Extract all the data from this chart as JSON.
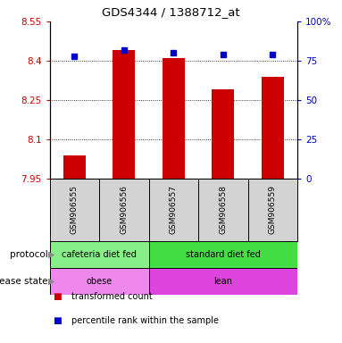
{
  "title": "GDS4344 / 1388712_at",
  "samples": [
    "GSM906555",
    "GSM906556",
    "GSM906557",
    "GSM906558",
    "GSM906559"
  ],
  "transformed_counts": [
    8.04,
    8.44,
    8.41,
    8.29,
    8.34
  ],
  "percentile_ranks": [
    78,
    82,
    80,
    79,
    79
  ],
  "ylim_left": [
    7.95,
    8.55
  ],
  "ylim_right": [
    0,
    100
  ],
  "yticks_left": [
    7.95,
    8.1,
    8.25,
    8.4,
    8.55
  ],
  "ytick_labels_left": [
    "7.95",
    "8.1",
    "8.25",
    "8.4",
    "8.55"
  ],
  "yticks_right": [
    0,
    25,
    50,
    75,
    100
  ],
  "ytick_labels_right": [
    "0",
    "25",
    "50",
    "75",
    "100%"
  ],
  "bar_color": "#cc0000",
  "dot_color": "#0000cc",
  "bar_width": 0.45,
  "protocol_groups": [
    {
      "label": "cafeteria diet fed",
      "samples": [
        "GSM906555",
        "GSM906556"
      ],
      "color": "#88ee88"
    },
    {
      "label": "standard diet fed",
      "samples": [
        "GSM906557",
        "GSM906558",
        "GSM906559"
      ],
      "color": "#44dd44"
    }
  ],
  "disease_groups": [
    {
      "label": "obese",
      "samples": [
        "GSM906555",
        "GSM906556"
      ],
      "color": "#ee88ee"
    },
    {
      "label": "lean",
      "samples": [
        "GSM906557",
        "GSM906558",
        "GSM906559"
      ],
      "color": "#dd44dd"
    }
  ],
  "left_axis_color": "#cc0000",
  "right_axis_color": "#0000cc",
  "legend_items": [
    {
      "label": "transformed count",
      "color": "#cc0000"
    },
    {
      "label": "percentile rank within the sample",
      "color": "#0000cc"
    }
  ]
}
